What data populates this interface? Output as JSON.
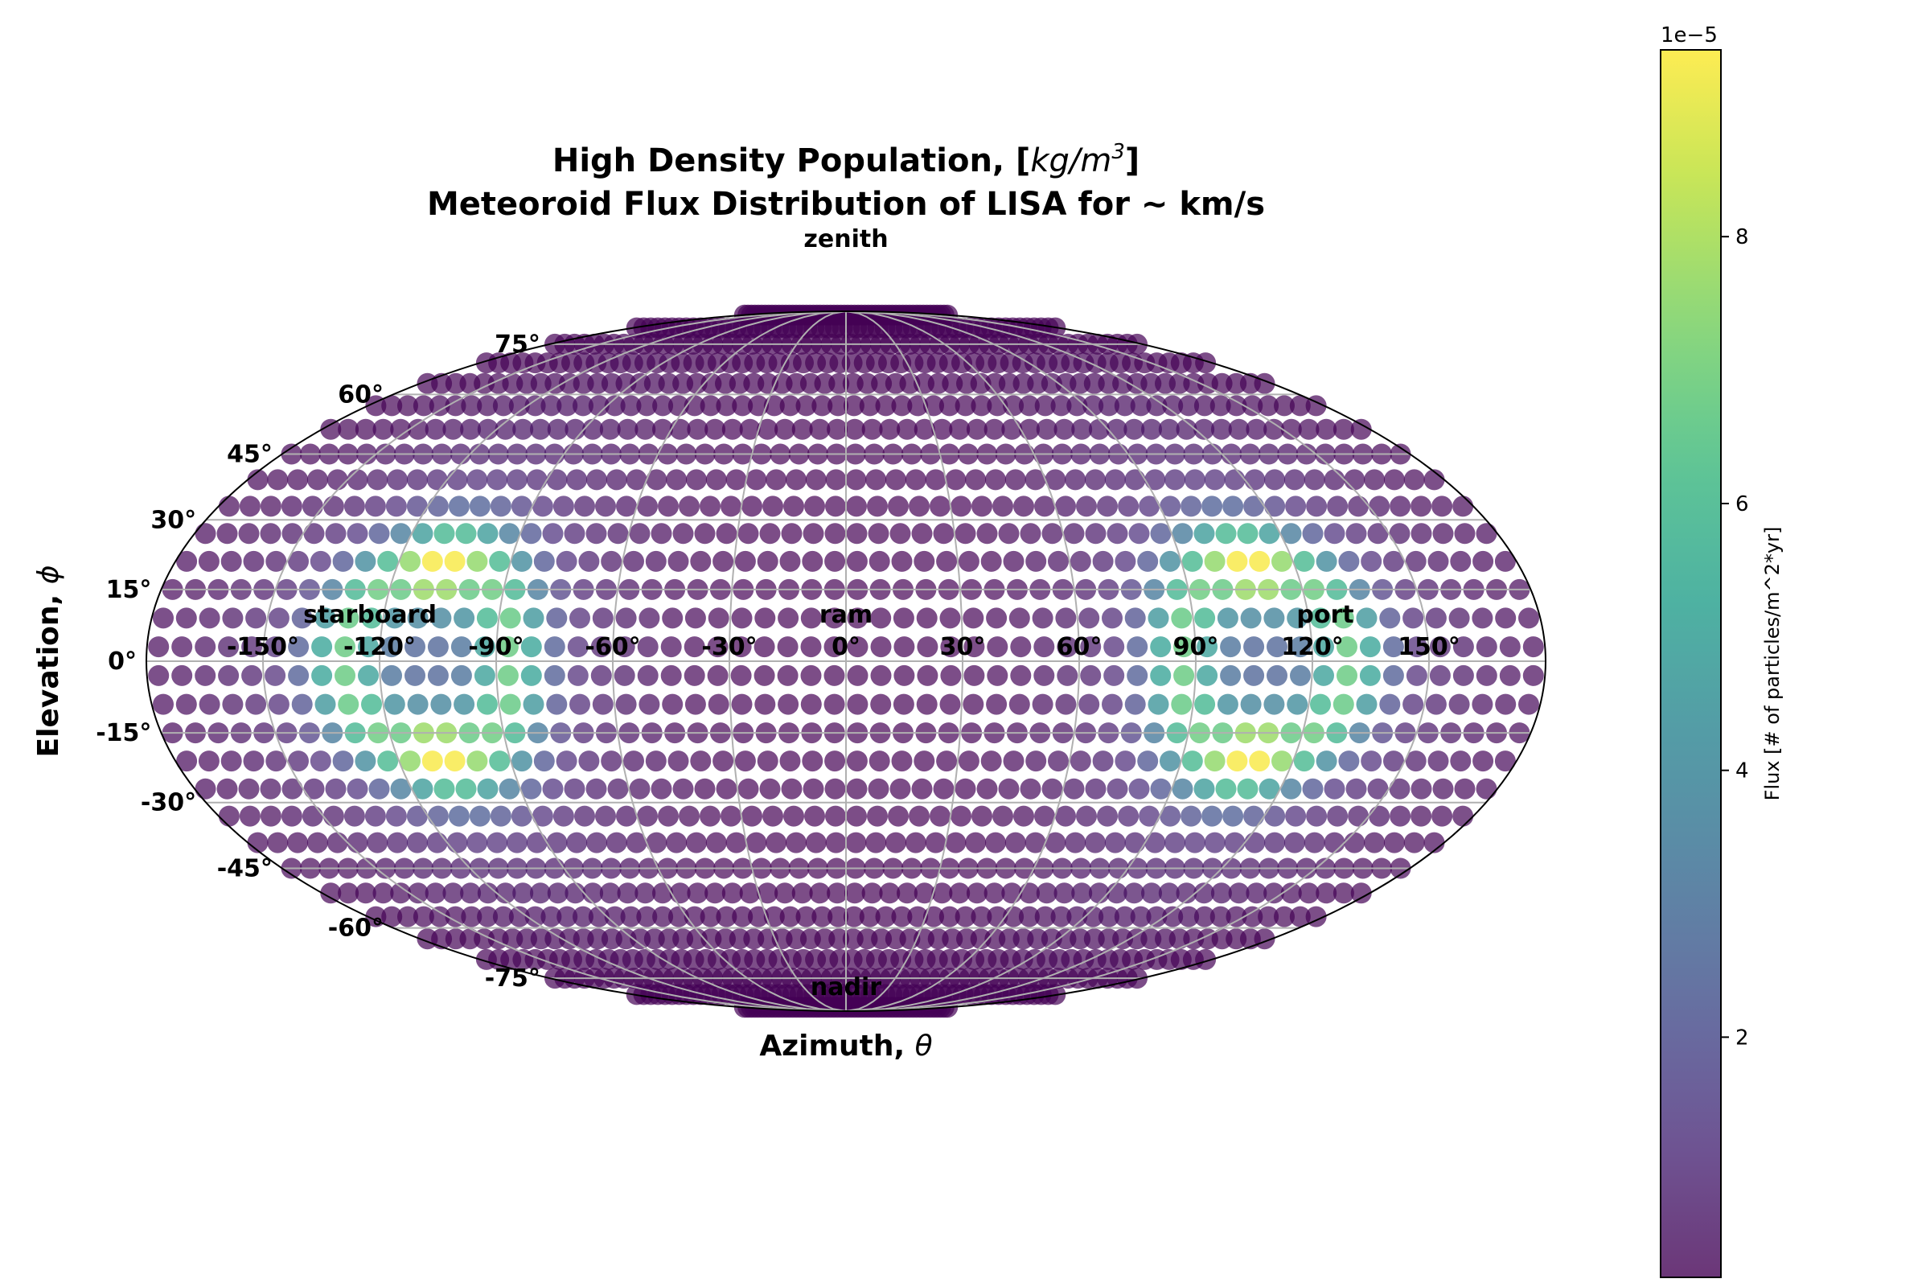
{
  "chart_data": {
    "type": "scatter",
    "projection": "mollweide",
    "title_line1": "High Density Population,  [",
    "title_unit_base": "kg/m",
    "title_unit_exp": "3",
    "title_line1_end": "]",
    "title_line2": "Meteoroid Flux Distribution of LISA  for ~ km/s",
    "xlabel_text": "Azimuth, ",
    "xlabel_symbol": "θ",
    "ylabel_text": "Elevation, ",
    "ylabel_symbol": "ϕ",
    "direction_labels": {
      "top": "zenith",
      "bottom": "nadir",
      "center": "ram",
      "left": "starboard",
      "right": "port"
    },
    "x_tick_labels": [
      "-150°",
      "-120°",
      "-90°",
      "-60°",
      "-30°",
      "0°",
      "30°",
      "60°",
      "90°",
      "120°",
      "150°"
    ],
    "x_tick_values": [
      -150,
      -120,
      -90,
      -60,
      -30,
      0,
      30,
      60,
      90,
      120,
      150
    ],
    "y_tick_labels": [
      "75°",
      "60°",
      "45°",
      "30°",
      "15°",
      "0°",
      "-15°",
      "-30°",
      "-45°",
      "-60°",
      "-75°"
    ],
    "y_tick_values": [
      75,
      60,
      45,
      30,
      15,
      0,
      -15,
      -30,
      -45,
      -60,
      -75
    ],
    "grid": true,
    "marker_alpha": 0.7,
    "point_spacing_deg": {
      "azimuth": 6,
      "elevation": 6
    },
    "azimuth_range": [
      -180,
      180
    ],
    "elevation_range": [
      -90,
      90
    ],
    "flux_hotspots": [
      {
        "azimuth": -108,
        "elevation": 18,
        "peak": 9e-05
      },
      {
        "azimuth": -108,
        "elevation": -18,
        "peak": 9e-05
      },
      {
        "azimuth": 108,
        "elevation": 18,
        "peak": 9e-05
      },
      {
        "azimuth": 108,
        "elevation": -18,
        "peak": 9e-05
      }
    ],
    "flux_ring_level": 5e-05,
    "flux_background": 2e-06,
    "colorbar": {
      "colormap": "viridis",
      "label": "Flux [# of particles/m^2*yr]",
      "offset_text": "1e−5",
      "range": [
        0.2,
        9.4
      ],
      "tick_labels": [
        "2",
        "4",
        "6",
        "8"
      ],
      "tick_values": [
        2,
        4,
        6,
        8
      ]
    }
  }
}
